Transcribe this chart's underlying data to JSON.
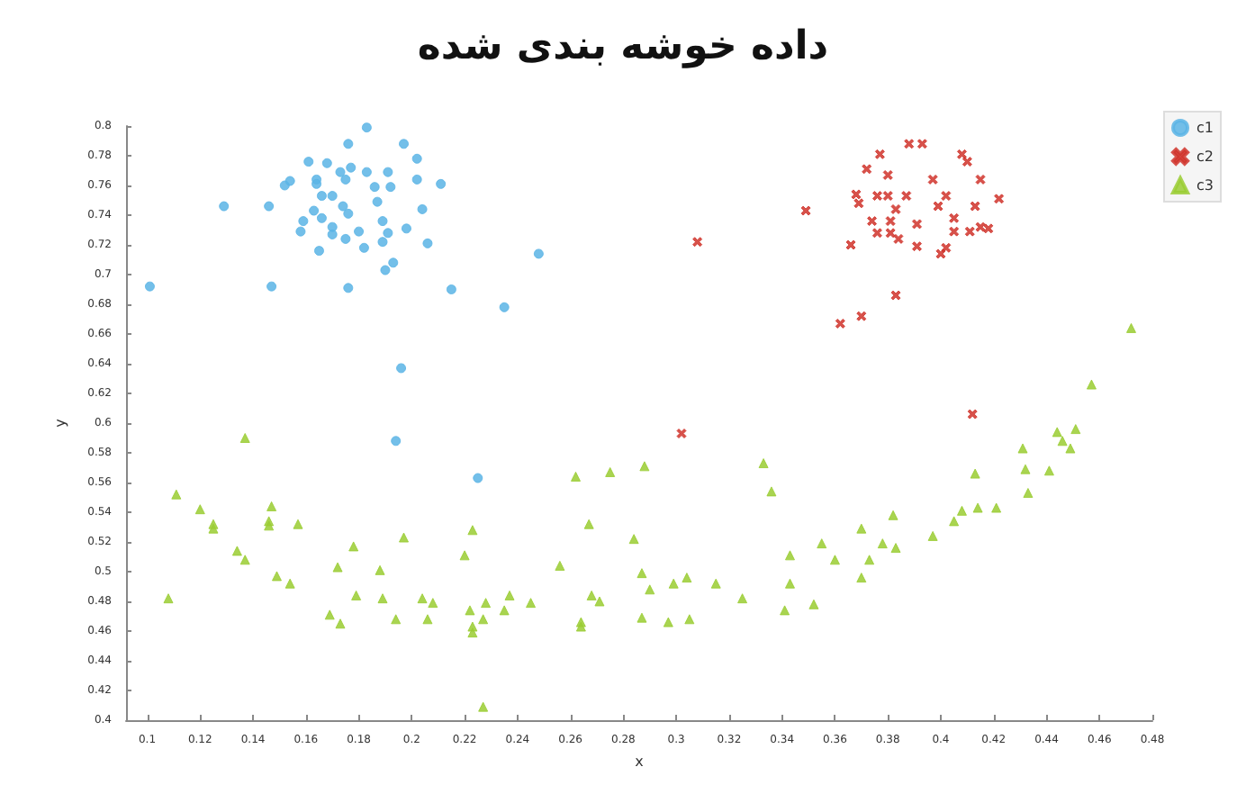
{
  "chart_data": {
    "type": "scatter",
    "title": "داده خوشه بندی شده",
    "xlabel": "x",
    "ylabel": "y",
    "xlim": [
      0.092,
      0.48
    ],
    "ylim": [
      0.4,
      0.8
    ],
    "xticks": [
      0.1,
      0.12,
      0.14,
      0.16,
      0.18,
      0.2,
      0.22,
      0.24,
      0.26,
      0.28,
      0.3,
      0.32,
      0.34,
      0.36,
      0.38,
      0.4,
      0.42,
      0.44,
      0.46,
      0.48
    ],
    "yticks": [
      0.4,
      0.42,
      0.44,
      0.46,
      0.48,
      0.5,
      0.52,
      0.54,
      0.56,
      0.58,
      0.6,
      0.62,
      0.64,
      0.66,
      0.68,
      0.7,
      0.72,
      0.74,
      0.76,
      0.78,
      0.8
    ],
    "grid": false,
    "legend": "top right",
    "series": [
      {
        "name": "c1",
        "color": "#5ab4e5",
        "marker": "circle",
        "x": [
          0.101,
          0.129,
          0.146,
          0.147,
          0.154,
          0.152,
          0.161,
          0.168,
          0.164,
          0.164,
          0.166,
          0.17,
          0.163,
          0.159,
          0.158,
          0.166,
          0.165,
          0.17,
          0.17,
          0.173,
          0.175,
          0.176,
          0.177,
          0.174,
          0.176,
          0.175,
          0.176,
          0.18,
          0.182,
          0.183,
          0.183,
          0.186,
          0.187,
          0.189,
          0.189,
          0.191,
          0.191,
          0.192,
          0.19,
          0.193,
          0.197,
          0.198,
          0.202,
          0.202,
          0.204,
          0.206,
          0.211,
          0.215,
          0.235,
          0.248,
          0.196,
          0.194,
          0.225
        ],
        "values": [
          0.692,
          0.746,
          0.746,
          0.692,
          0.763,
          0.76,
          0.776,
          0.775,
          0.764,
          0.761,
          0.753,
          0.753,
          0.743,
          0.736,
          0.729,
          0.738,
          0.716,
          0.727,
          0.732,
          0.769,
          0.764,
          0.788,
          0.772,
          0.746,
          0.741,
          0.724,
          0.691,
          0.729,
          0.718,
          0.799,
          0.769,
          0.759,
          0.749,
          0.736,
          0.722,
          0.728,
          0.769,
          0.759,
          0.703,
          0.708,
          0.788,
          0.731,
          0.778,
          0.764,
          0.744,
          0.721,
          0.761,
          0.69,
          0.678,
          0.714,
          0.637,
          0.588,
          0.563
        ]
      },
      {
        "name": "c2",
        "color": "#d0342c",
        "marker": "cross",
        "x": [
          0.308,
          0.349,
          0.366,
          0.368,
          0.369,
          0.372,
          0.374,
          0.376,
          0.376,
          0.377,
          0.38,
          0.38,
          0.381,
          0.381,
          0.383,
          0.384,
          0.387,
          0.388,
          0.393,
          0.391,
          0.391,
          0.397,
          0.399,
          0.402,
          0.402,
          0.4,
          0.405,
          0.405,
          0.408,
          0.41,
          0.411,
          0.413,
          0.415,
          0.415,
          0.418,
          0.422,
          0.383,
          0.37,
          0.362,
          0.412,
          0.302
        ],
        "values": [
          0.722,
          0.743,
          0.72,
          0.754,
          0.748,
          0.771,
          0.736,
          0.753,
          0.728,
          0.781,
          0.767,
          0.753,
          0.736,
          0.728,
          0.744,
          0.724,
          0.753,
          0.788,
          0.788,
          0.734,
          0.719,
          0.764,
          0.746,
          0.753,
          0.718,
          0.714,
          0.738,
          0.729,
          0.781,
          0.776,
          0.729,
          0.746,
          0.764,
          0.732,
          0.731,
          0.751,
          0.686,
          0.672,
          0.667,
          0.606,
          0.593
        ]
      },
      {
        "name": "c3",
        "color": "#9acd32",
        "marker": "triangle",
        "x": [
          0.108,
          0.111,
          0.12,
          0.125,
          0.125,
          0.134,
          0.137,
          0.137,
          0.146,
          0.146,
          0.147,
          0.149,
          0.154,
          0.157,
          0.169,
          0.172,
          0.173,
          0.178,
          0.179,
          0.188,
          0.189,
          0.194,
          0.197,
          0.204,
          0.206,
          0.208,
          0.22,
          0.222,
          0.223,
          0.223,
          0.223,
          0.227,
          0.228,
          0.227,
          0.235,
          0.237,
          0.245,
          0.256,
          0.262,
          0.264,
          0.264,
          0.267,
          0.268,
          0.271,
          0.275,
          0.284,
          0.287,
          0.287,
          0.288,
          0.29,
          0.297,
          0.299,
          0.304,
          0.305,
          0.315,
          0.325,
          0.333,
          0.336,
          0.341,
          0.343,
          0.343,
          0.352,
          0.355,
          0.36,
          0.37,
          0.37,
          0.373,
          0.378,
          0.382,
          0.383,
          0.397,
          0.405,
          0.408,
          0.413,
          0.414,
          0.421,
          0.431,
          0.432,
          0.433,
          0.441,
          0.444,
          0.446,
          0.449,
          0.451,
          0.457,
          0.472
        ],
        "values": [
          0.482,
          0.552,
          0.542,
          0.532,
          0.529,
          0.514,
          0.59,
          0.508,
          0.534,
          0.531,
          0.544,
          0.497,
          0.492,
          0.532,
          0.471,
          0.503,
          0.465,
          0.517,
          0.484,
          0.501,
          0.482,
          0.468,
          0.523,
          0.482,
          0.468,
          0.479,
          0.511,
          0.474,
          0.528,
          0.463,
          0.459,
          0.468,
          0.479,
          0.409,
          0.474,
          0.484,
          0.479,
          0.504,
          0.564,
          0.466,
          0.463,
          0.532,
          0.484,
          0.48,
          0.567,
          0.522,
          0.499,
          0.469,
          0.571,
          0.488,
          0.466,
          0.492,
          0.496,
          0.468,
          0.492,
          0.482,
          0.573,
          0.554,
          0.474,
          0.511,
          0.492,
          0.478,
          0.519,
          0.508,
          0.529,
          0.496,
          0.508,
          0.519,
          0.538,
          0.516,
          0.524,
          0.534,
          0.541,
          0.566,
          0.543,
          0.543,
          0.583,
          0.569,
          0.553,
          0.568,
          0.594,
          0.588,
          0.583,
          0.596,
          0.626,
          0.664
        ]
      }
    ]
  }
}
